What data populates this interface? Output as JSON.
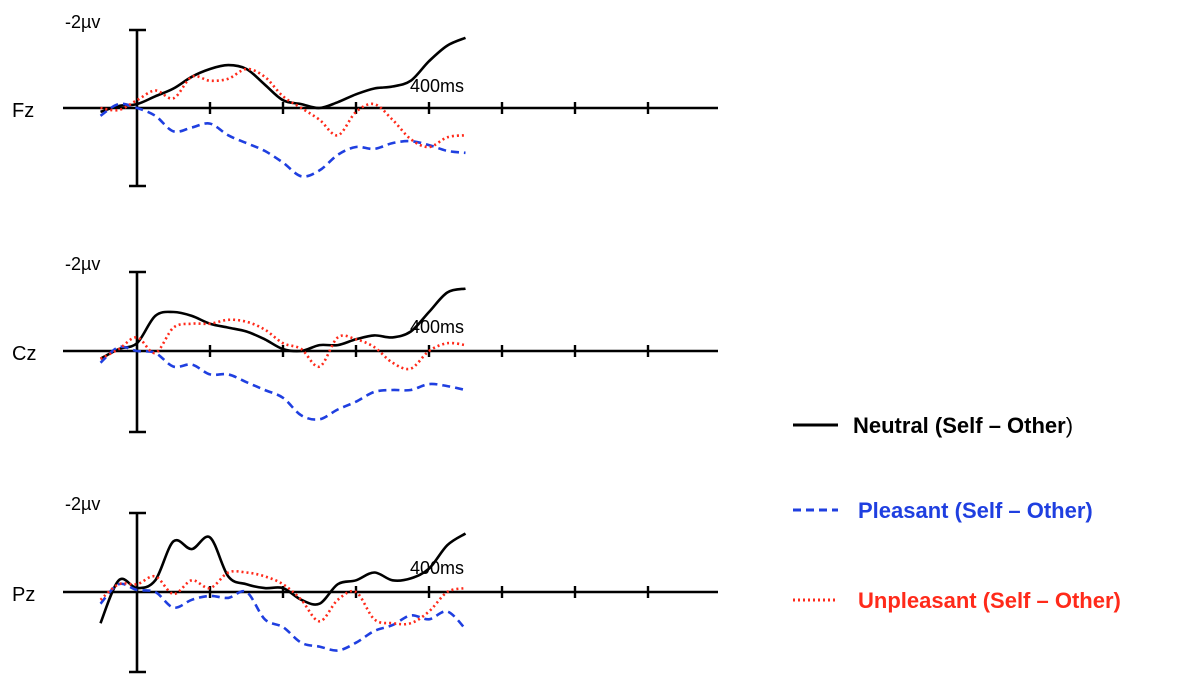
{
  "chart_data": {
    "type": "line",
    "x_unit": "ms",
    "time_tick_label": "400ms",
    "amplitude_label": "-2µv",
    "y_orientation": "negative-up",
    "grid": false,
    "legend_position": "right",
    "colors": {
      "neutral": "#000000",
      "pleasant": "#1f3fe0",
      "unpleasant": "#ff2a1a"
    },
    "legend": [
      {
        "key": "neutral",
        "prefix": "Neutral",
        "suffix": " (Self – Other",
        "close": ")",
        "style": "solid"
      },
      {
        "key": "pleasant",
        "prefix": "Pleasant",
        "suffix": " (Self – Other)",
        "close": "",
        "style": "dashed"
      },
      {
        "key": "unpleasant",
        "prefix": "Unpleasant",
        "suffix": " (Self – Other)",
        "close": "",
        "style": "dotted"
      }
    ],
    "panels": [
      {
        "electrode": "Fz",
        "series": [
          {
            "key": "neutral",
            "x": [
              -100,
              -50,
              0,
              50,
              100,
              150,
              200,
              250,
              300,
              350,
              400,
              450,
              500,
              550,
              600,
              650,
              700,
              750,
              800,
              850,
              900
            ],
            "y": [
              -0.1,
              0.05,
              0.1,
              0.3,
              0.5,
              0.8,
              1.0,
              1.1,
              1.0,
              0.6,
              0.2,
              0.1,
              0.0,
              0.15,
              0.35,
              0.5,
              0.55,
              0.7,
              1.2,
              1.6,
              1.8
            ]
          },
          {
            "key": "pleasant",
            "x": [
              -100,
              -50,
              0,
              50,
              100,
              150,
              200,
              250,
              300,
              350,
              400,
              450,
              500,
              550,
              600,
              650,
              700,
              750,
              800,
              850,
              900
            ],
            "y": [
              -0.2,
              0.1,
              0.0,
              -0.2,
              -0.6,
              -0.5,
              -0.4,
              -0.7,
              -0.9,
              -1.1,
              -1.4,
              -1.75,
              -1.6,
              -1.2,
              -1.0,
              -1.05,
              -0.9,
              -0.85,
              -0.95,
              -1.1,
              -1.15
            ]
          },
          {
            "key": "unpleasant",
            "x": [
              -100,
              -50,
              0,
              50,
              100,
              150,
              200,
              250,
              300,
              350,
              400,
              450,
              500,
              550,
              600,
              650,
              700,
              750,
              800,
              850,
              900
            ],
            "y": [
              0.0,
              -0.05,
              0.2,
              0.45,
              0.25,
              0.8,
              0.7,
              0.75,
              1.0,
              0.8,
              0.3,
              0.0,
              -0.3,
              -0.7,
              -0.1,
              0.1,
              -0.3,
              -0.8,
              -1.0,
              -0.75,
              -0.7
            ]
          }
        ]
      },
      {
        "electrode": "Cz",
        "series": [
          {
            "key": "neutral",
            "x": [
              -100,
              -50,
              0,
              50,
              100,
              150,
              200,
              250,
              300,
              350,
              400,
              450,
              500,
              550,
              600,
              650,
              700,
              750,
              800,
              850,
              900
            ],
            "y": [
              -0.2,
              0.05,
              0.2,
              0.9,
              1.0,
              0.9,
              0.7,
              0.6,
              0.5,
              0.3,
              0.05,
              0.0,
              0.15,
              0.15,
              0.3,
              0.4,
              0.35,
              0.5,
              1.0,
              1.5,
              1.6
            ]
          },
          {
            "key": "pleasant",
            "x": [
              -100,
              -50,
              0,
              50,
              100,
              150,
              200,
              250,
              300,
              350,
              400,
              450,
              500,
              550,
              600,
              650,
              700,
              750,
              800,
              850,
              900
            ],
            "y": [
              -0.3,
              0.1,
              0.0,
              -0.05,
              -0.4,
              -0.35,
              -0.6,
              -0.6,
              -0.8,
              -1.0,
              -1.2,
              -1.65,
              -1.75,
              -1.5,
              -1.3,
              -1.05,
              -1.0,
              -1.0,
              -0.85,
              -0.9,
              -1.0
            ]
          },
          {
            "key": "unpleasant",
            "x": [
              -100,
              -50,
              0,
              50,
              100,
              150,
              200,
              250,
              300,
              350,
              400,
              450,
              500,
              550,
              600,
              650,
              700,
              750,
              800,
              850,
              900
            ],
            "y": [
              -0.2,
              0.05,
              0.35,
              -0.05,
              0.6,
              0.7,
              0.7,
              0.8,
              0.75,
              0.55,
              0.2,
              0.05,
              -0.4,
              0.35,
              0.3,
              0.1,
              -0.3,
              -0.45,
              0.0,
              0.2,
              0.15
            ]
          }
        ]
      },
      {
        "electrode": "Pz",
        "series": [
          {
            "key": "neutral",
            "x": [
              -100,
              -50,
              0,
              50,
              100,
              150,
              200,
              250,
              300,
              350,
              400,
              450,
              500,
              550,
              600,
              650,
              700,
              750,
              800,
              850,
              900
            ],
            "y": [
              -0.8,
              0.3,
              0.1,
              0.3,
              1.3,
              1.1,
              1.4,
              0.4,
              0.2,
              0.1,
              0.1,
              -0.2,
              -0.3,
              0.2,
              0.3,
              0.5,
              0.3,
              0.35,
              0.6,
              1.2,
              1.5
            ]
          },
          {
            "key": "pleasant",
            "x": [
              -100,
              -50,
              0,
              50,
              100,
              150,
              200,
              250,
              300,
              350,
              400,
              450,
              500,
              550,
              600,
              650,
              700,
              750,
              800,
              850,
              900
            ],
            "y": [
              -0.3,
              0.2,
              0.05,
              0.0,
              -0.4,
              -0.2,
              -0.1,
              -0.15,
              0.0,
              -0.7,
              -0.9,
              -1.3,
              -1.4,
              -1.5,
              -1.3,
              -1.0,
              -0.85,
              -0.6,
              -0.7,
              -0.5,
              -0.95
            ]
          },
          {
            "key": "unpleasant",
            "x": [
              -100,
              -50,
              0,
              50,
              100,
              150,
              200,
              250,
              300,
              350,
              400,
              450,
              500,
              550,
              600,
              650,
              700,
              750,
              800,
              850,
              900
            ],
            "y": [
              -0.2,
              0.2,
              0.2,
              0.4,
              -0.05,
              0.3,
              0.1,
              0.5,
              0.5,
              0.4,
              0.2,
              -0.2,
              -0.75,
              -0.2,
              0.0,
              -0.7,
              -0.8,
              -0.8,
              -0.5,
              0.0,
              0.1
            ]
          }
        ]
      }
    ]
  }
}
